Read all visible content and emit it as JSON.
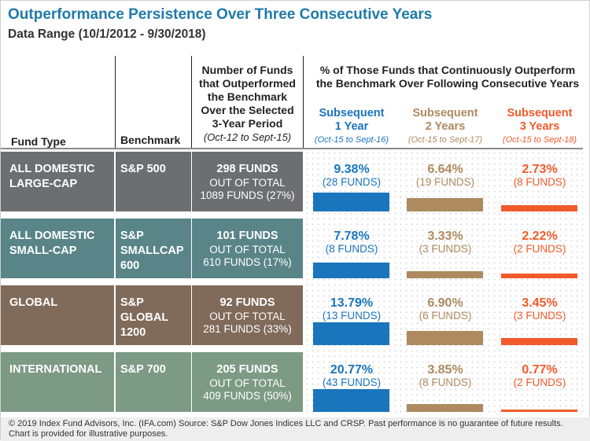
{
  "title": "Outperformance Persistence Over Three Consecutive Years",
  "subtitle": "Data Range (10/1/2012 - 9/30/2018)",
  "headers": {
    "fund_type": "Fund Type",
    "benchmark": "Benchmark",
    "num_funds": [
      "Number of Funds",
      "that Outperformed",
      "the Benchmark",
      "Over the Selected",
      "3-Year Period"
    ],
    "num_funds_range": "(Oct-12 to Sept-15)",
    "pct": [
      "% of Those Funds that Continuously Outperform",
      "the Benchmark Over Following Consecutive Years"
    ],
    "subsequent": [
      {
        "line1": "Subsequent",
        "line2": "1 Year",
        "range": "(Oct-15 to Sept-16)",
        "color": "#1a75bc"
      },
      {
        "line1": "Subsequent",
        "line2": "2 Years",
        "range": "(Oct-15 to Sept-17)",
        "color": "#ad8a5f"
      },
      {
        "line1": "Subsequent",
        "line2": "3 Years",
        "range": "(Oct-15 to Sept-18)",
        "color": "#f15a2b"
      }
    ]
  },
  "chart_data": {
    "type": "bar",
    "categories": [
      "ALL DOMESTIC LARGE-CAP",
      "ALL DOMESTIC SMALL-CAP",
      "GLOBAL",
      "INTERNATIONAL"
    ],
    "series": [
      {
        "name": "Subsequent 1 Year",
        "values": [
          9.38,
          7.78,
          13.79,
          20.77
        ],
        "funds": [
          28,
          8,
          13,
          43
        ]
      },
      {
        "name": "Subsequent 2 Years",
        "values": [
          6.64,
          3.33,
          6.9,
          3.85
        ],
        "funds": [
          19,
          3,
          6,
          8
        ]
      },
      {
        "name": "Subsequent 3 Years",
        "values": [
          2.73,
          2.22,
          3.45,
          0.77
        ],
        "funds": [
          8,
          2,
          3,
          2
        ]
      }
    ],
    "unit": "%"
  },
  "rows": [
    {
      "fund_type": [
        "ALL DOMESTIC",
        "LARGE-CAP"
      ],
      "benchmark": [
        "S&P 500"
      ],
      "funds": "298 FUNDS",
      "out_of": "OUT OF TOTAL",
      "total": "1089 FUNDS (27%)",
      "color": "#6d6e71",
      "pct": [
        {
          "value": "9.38%",
          "funds": "(28 FUNDS)"
        },
        {
          "value": "6.64%",
          "funds": "(19 FUNDS)"
        },
        {
          "value": "2.73%",
          "funds": "(8 FUNDS)"
        }
      ]
    },
    {
      "fund_type": [
        "ALL DOMESTIC",
        "SMALL-CAP"
      ],
      "benchmark": [
        "S&P",
        "SMALLCAP",
        "600"
      ],
      "funds": "101 FUNDS",
      "out_of": "OUT OF TOTAL",
      "total": "610 FUNDS (17%)",
      "color": "#5a8588",
      "pct": [
        {
          "value": "7.78%",
          "funds": "(8 FUNDS)"
        },
        {
          "value": "3.33%",
          "funds": "(3 FUNDS)"
        },
        {
          "value": "2.22%",
          "funds": "(2 FUNDS)"
        }
      ]
    },
    {
      "fund_type": [
        "GLOBAL"
      ],
      "benchmark": [
        "S&P",
        "GLOBAL",
        "1200"
      ],
      "funds": "92 FUNDS",
      "out_of": "OUT OF TOTAL",
      "total": "281 FUNDS (33%)",
      "color": "#806a5a",
      "pct": [
        {
          "value": "13.79%",
          "funds": "(13 FUNDS)"
        },
        {
          "value": "6.90%",
          "funds": "(6 FUNDS)"
        },
        {
          "value": "3.45%",
          "funds": "(3 FUNDS)"
        }
      ]
    },
    {
      "fund_type": [
        "INTERNATIONAL"
      ],
      "benchmark": [
        "S&P 700"
      ],
      "funds": "205 FUNDS",
      "out_of": "OUT OF TOTAL",
      "total": "409 FUNDS (50%)",
      "color": "#7d9a85",
      "pct": [
        {
          "value": "20.77%",
          "funds": "(43 FUNDS)"
        },
        {
          "value": "3.85%",
          "funds": "(8 FUNDS)"
        },
        {
          "value": "0.77%",
          "funds": "(2 FUNDS)"
        }
      ]
    }
  ],
  "footer": {
    "line1": "© 2019 Index Fund Advisors, Inc. (IFA.com)   Source: S&P Dow Jones Indices LLC and CRSP. Past performance is no guarantee of future results.",
    "line2": "Chart is provided for illustrative purposes."
  }
}
